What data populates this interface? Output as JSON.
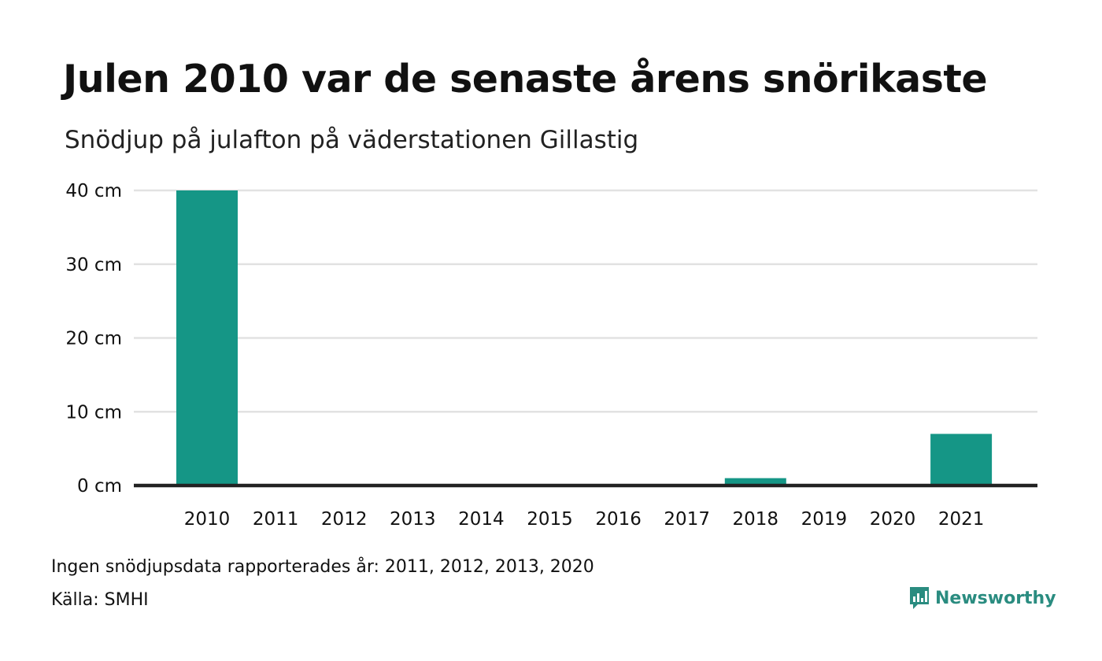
{
  "title": "Julen 2010 var de senaste årens snörikaste",
  "subtitle": "Snödjup på julafton på väderstationen Gillastig",
  "footer": {
    "note": "Ingen snödjupsdata rapporterades år: 2011, 2012, 2013, 2020",
    "source": "Källa: SMHI",
    "brand": "Newsworthy"
  },
  "colors": {
    "bar": "#159686",
    "grid": "#e2e2e2",
    "axis": "#222222",
    "brand": "#2a8c80"
  },
  "chart_data": {
    "type": "bar",
    "categories": [
      "2010",
      "2011",
      "2012",
      "2013",
      "2014",
      "2015",
      "2016",
      "2017",
      "2018",
      "2019",
      "2020",
      "2021"
    ],
    "values": [
      40,
      null,
      null,
      null,
      0,
      0,
      0,
      0,
      1,
      0,
      null,
      7
    ],
    "ylim": [
      0,
      40
    ],
    "yticks": [
      0,
      10,
      20,
      30,
      40
    ],
    "ytick_labels": [
      "0 cm",
      "10 cm",
      "20 cm",
      "30 cm",
      "40 cm"
    ],
    "grid": true
  }
}
